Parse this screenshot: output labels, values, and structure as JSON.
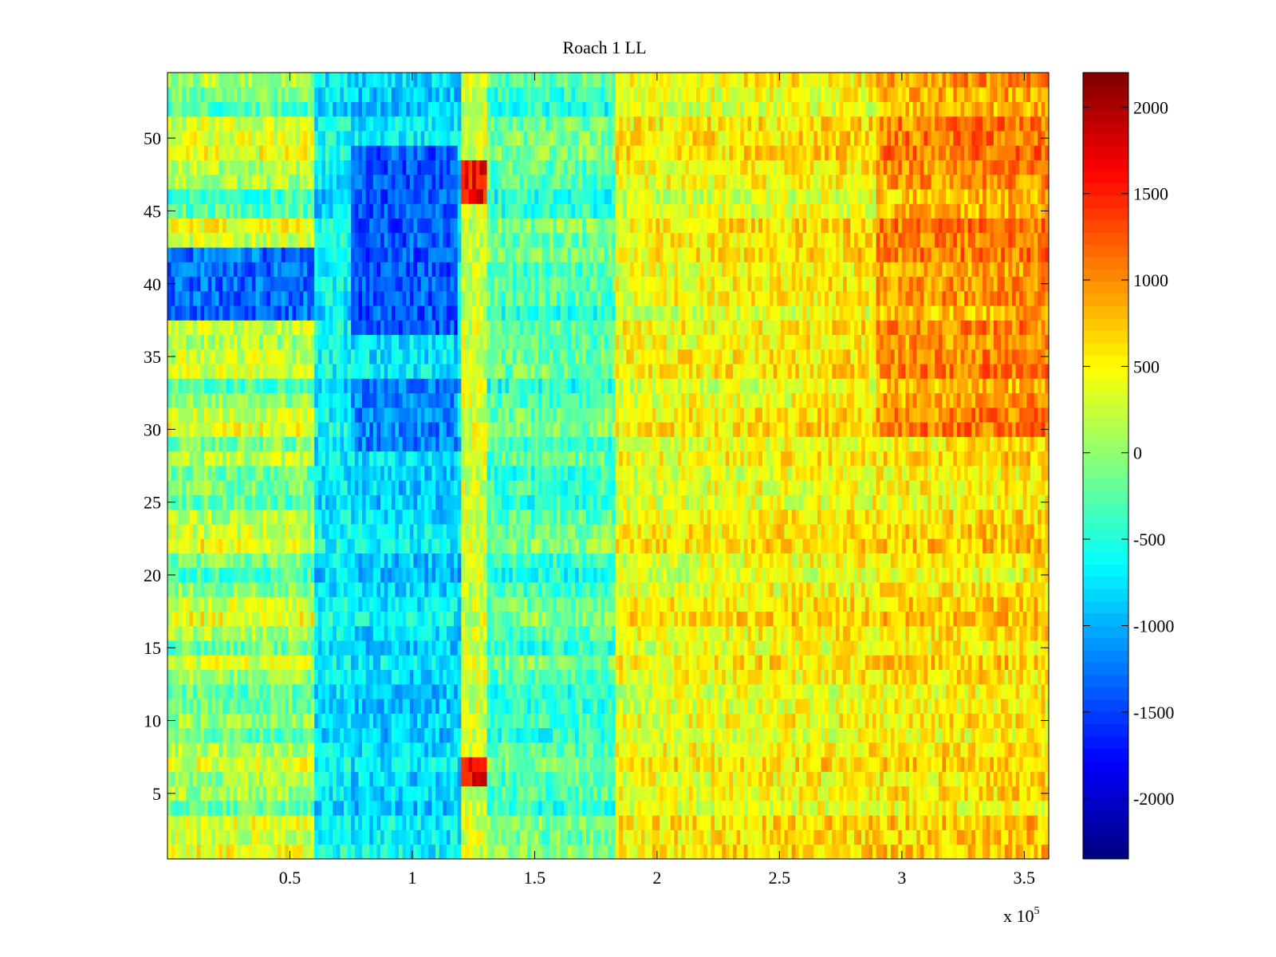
{
  "chart_data": {
    "type": "heatmap",
    "title": "Roach 1 LL",
    "xlabel": "",
    "ylabel": "",
    "x_range": [
      0,
      360000
    ],
    "y_range": [
      0.5,
      54.5
    ],
    "rows": 54,
    "x_tick_values": [
      50000,
      100000,
      150000,
      200000,
      250000,
      300000,
      350000
    ],
    "x_tick_labels": [
      "0.5",
      "1",
      "1.5",
      "2",
      "2.5",
      "3",
      "3.5"
    ],
    "x_multiplier_label": {
      "base": "x 10",
      "exponent": "5"
    },
    "y_tick_values": [
      5,
      10,
      15,
      20,
      25,
      30,
      35,
      40,
      45,
      50
    ],
    "y_tick_labels": [
      "5",
      "10",
      "15",
      "20",
      "25",
      "30",
      "35",
      "40",
      "45",
      "50"
    ],
    "colormap": "jet",
    "colorbar": {
      "range": [
        -2350,
        2200
      ],
      "tick_values": [
        2000,
        1500,
        1000,
        500,
        0,
        -500,
        -1000,
        -1500,
        -2000
      ],
      "tick_labels": [
        "2000",
        "1500",
        "1000",
        "500",
        "0",
        "-500",
        "-1000",
        "-1500",
        "-2000"
      ]
    },
    "regions_approx": [
      {
        "x_range": [
          0,
          60000
        ],
        "rows": "all",
        "mean_value": 0,
        "note": "mixed, banded per row"
      },
      {
        "x_range": [
          60000,
          120000
        ],
        "rows": "1-54",
        "mean_value": -700
      },
      {
        "x_range": [
          75000,
          118000
        ],
        "rows": "37-49",
        "mean_value": -1400
      },
      {
        "x_range": [
          0,
          60000
        ],
        "rows": "38-42",
        "mean_value": -1300
      },
      {
        "x_range": [
          120000,
          130000
        ],
        "rows": "scattered",
        "mean_value": 1300,
        "note": "narrow red stripe"
      },
      {
        "x_range": [
          130000,
          183000
        ],
        "rows": "all",
        "mean_value": -300
      },
      {
        "x_range": [
          183000,
          360000
        ],
        "rows": "all",
        "mean_value": 500
      },
      {
        "x_range": [
          290000,
          360000
        ],
        "rows": "30-54",
        "mean_value": 800
      }
    ]
  }
}
